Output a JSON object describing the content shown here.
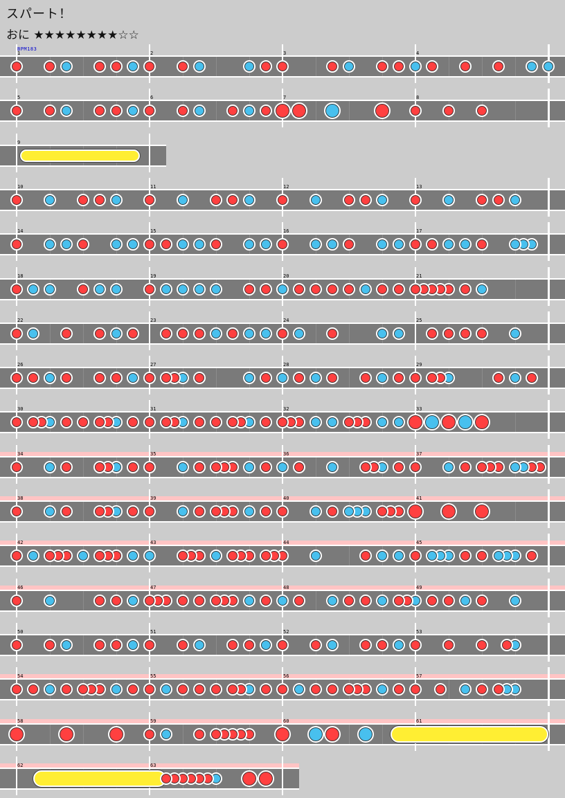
{
  "song": {
    "title": "スパート！",
    "difficulty_label": "おに",
    "stars_filled": 8,
    "stars_total": 10,
    "stars_text": "★★★★★★★★☆☆",
    "bpm_label": "BPM183"
  },
  "colors": {
    "don": "#ff4040",
    "ka": "#48c0ee",
    "roll": "#ffee33",
    "gogo": "#ffc4c4",
    "lane": "#7a7a7a",
    "background": "#cccccc"
  },
  "rows": [
    {
      "measures": [
        "1",
        "2",
        "3",
        "4"
      ],
      "gogo": false,
      "notes": "d:0.5 d:1.5 k:2 d:3 d:3.5 k:4 d:4.5 d:5.5 k:6 k:7.5 d:8 d:8.5 d:10 k:10.5 d:11.5 d:12 k:12.5 d:13 d:14 d:15 k:16 k:16.5"
    },
    {
      "measures": [
        "5",
        "6",
        "7",
        "8"
      ],
      "gogo": false,
      "notes": "d:0.5 d:1.5 k:2 d:3 d:3.5 k:4 d:4.5 d:5.5 k:6 d:7 k:7.5 d:8 D:8.5 D:9 K:10 D:11.5 d:12.5 d:13.5 d:14.5"
    },
    {
      "measures": [
        "9"
      ],
      "gogo": false,
      "short": 1,
      "rolls": [
        {
          "from": 0.3,
          "to": 3.7,
          "big": false
        }
      ],
      "notes": ""
    },
    {
      "measures": [
        "10",
        "11",
        "12",
        "13"
      ],
      "gogo": false,
      "notes": "d:0.5 k:1.5 d:2.5 d:3 k:3.5 d:4.5 k:5.5 d:6.5 d:7 k:7.5 d:8.5 k:9.5 d:10.5 d:11 k:11.5 d:12.5 k:13.5 d:14.5 d:15 k:15.5"
    },
    {
      "measures": [
        "14",
        "15",
        "16",
        "17"
      ],
      "gogo": false,
      "notes": "d:0.5 k:1.5 k:2 d:2.5 k:3.5 k:4 d:4.5 d:5 k:5.5 k:6 d:6.5 k:7.5 k:8 d:8.5 k:9.5 k:10 d:10.5 k:11.5 k:12 d:12.5 d:13 k:13.5 k:14 d:14.5 k:15.5 k:15.75 k:16"
    },
    {
      "measures": [
        "18",
        "19",
        "20",
        "21"
      ],
      "gogo": false,
      "notes": "d:0.5 k:1 k:1.5 d:2.5 k:3 k:3.5 d:4.5 k:5 k:5.5 k:6 k:6.5 d:7.5 d:8 k:8.5 d:8.5 d:9 d:9.5 d:10 d:10.5 k:11 d:11.5 d:12 d:12.5 d:12.75 d:13 d:13.25 d:13.5 d:14 k:14.5"
    },
    {
      "measures": [
        "22",
        "23",
        "24",
        "25"
      ],
      "gogo": false,
      "notes": "d:0.5 k:1 d:2 d:3 k:3.5 d:4 d:5 d:5.5 d:6 k:6.5 d:7 k:7.5 k:8 d:8.5 k:9 d:10 k:11.5 k:12 d:13 d:13.5 d:14 d:14.5 k:15.5"
    },
    {
      "measures": [
        "26",
        "27",
        "28",
        "29"
      ],
      "gogo": false,
      "notes": "d:0.5 d:1 k:1.5 d:2 d:3 d:3.5 k:4 d:4.5 d:5 d:5.25 k:5.5 d:6 k:7.5 d:8 k:8.5 d:9 k:9.5 d:10 d:11 k:11.5 d:12 d:12.5 d:13 d:13.25 k:13.5 d:15 k:15.5 d:16"
    },
    {
      "measures": [
        "30",
        "31",
        "32",
        "33"
      ],
      "gogo": false,
      "notes": "d:0.5 d:1 d:1.25 k:1.5 d:2 d:2.5 d:3 d:3.25 k:3.5 d:4 d:4.5 d:5 d:5.25 k:5.5 d:6 d:6.5 d:7 d:7.25 k:7.5 d:8 d:8.5 d:8.75 d:9 k:9.5 k:10 d:10.5 d:10.75 d:11 k:11.5 k:12 D:12.5 K:13 D:13.5 K:14 D:14.5"
    },
    {
      "measures": [
        "34",
        "35",
        "36",
        "37"
      ],
      "gogo": true,
      "notes": "d:0.5 k:1.5 d:2 d:3 d:3.25 k:3.5 d:4 d:4.5 k:5.5 d:6 d:6.5 d:6.75 d:7 k:7.5 d:8 k:8.5 d:9 k:10 d:11 d:11.25 k:11.5 d:12 d:12.5 k:13.5 d:14 d:14.5 d:14.75 d:15 k:15.5 k:15.75 d:16 d:16.25"
    },
    {
      "measures": [
        "38",
        "39",
        "40",
        "41"
      ],
      "gogo": true,
      "notes": "d:0.5 k:1.5 d:2 d:3 d:3.25 k:3.5 d:4 d:4.5 k:5.5 d:6 d:6.5 d:6.75 d:7 k:7.5 d:8 d:8.5 k:9.5 d:10 k:10.5 k:10.75 k:11 d:11.5 d:11.75 d:12 D:12.5 D:13.5 D:14.5"
    },
    {
      "measures": [
        "42",
        "43",
        "44",
        "45"
      ],
      "gogo": true,
      "notes": "d:0.5 k:1 d:1.5 d:1.75 d:2 k:2.5 d:3 d:3.25 d:3.5 k:4 k:4.5 d:5.5 d:5.75 d:6 k:6.5 d:7 d:7.25 d:7.5 d:8 d:8.25 d:8.5 k:9.5 d:11 k:11.5 k:12 d:12.5 k:13 k:13.25 k:13.5 d:14 d:14.5 k:15 k:15.25 k:15.5 d:16"
    },
    {
      "measures": [
        "46",
        "47",
        "48",
        "49"
      ],
      "gogo": true,
      "notes": "d:0.5 k:1.5 d:3 d:3.5 k:4 d:4.5 d:4.75 d:5 d:5.5 d:6 d:6.5 d:6.75 d:7 k:7.5 d:8 k:8.5 d:9 k:10 d:10.5 d:11 k:11.5 d:12 d:12.25 k:12.5 d:13 d:13.5 k:14 d:14.5 k:15.5"
    },
    {
      "measures": [
        "50",
        "51",
        "52",
        "53"
      ],
      "gogo": false,
      "notes": "d:0.5 d:1.5 k:2 d:3 d:3.5 k:4 d:4.5 d:5.5 k:6 d:7 d:7.5 k:8 d:8.5 d:9.5 k:10 d:11 d:11.5 k:12 d:12.5 d:13.5 d:14.5 d:15.25 k:15.5"
    },
    {
      "measures": [
        "54",
        "55",
        "56",
        "57"
      ],
      "gogo": true,
      "notes": "d:0.5 d:1 k:1.5 d:2 d:2.5 d:2.75 d:3 k:3.5 d:4 d:4.5 k:5 d:5.5 d:6 d:6.5 d:7 d:7.25 k:7.5 d:8 d:8.5 k:9 d:9.5 d:10 d:10.5 d:10.75 d:11 k:11.5 d:12 d:12.5 d:13.25 k:14 d:14.5 d:15 k:15.25 k:15.5"
    },
    {
      "measures": [
        "58",
        "59",
        "60",
        "61"
      ],
      "gogo": true,
      "rolls": [
        {
          "from": 11.25,
          "to": 16.0,
          "big": true
        }
      ],
      "notes": "D:0.5 D:2 D:3.5 d:4.5 k:5 d:6 d:6.5 d:6.75 d:7 d:7.25 d:7.5 D:8.5 K:9.5 D:10 K:11"
    },
    {
      "measures": [
        "62",
        "63"
      ],
      "gogo": true,
      "short": 2,
      "rolls": [
        {
          "from": 0.5,
          "to": 4.5,
          "big": true
        }
      ],
      "notes": "d:5 d:5.25 d:5.5 d:5.75 d:6 d:6.25 k:6.5 D:7.5 D:8"
    }
  ]
}
